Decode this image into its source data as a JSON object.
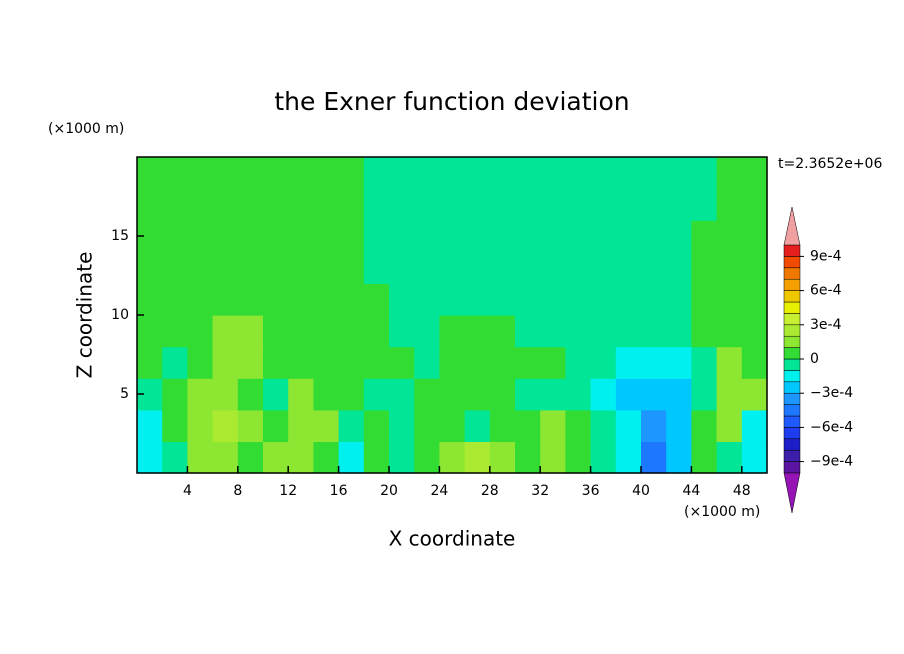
{
  "chart_data": {
    "type": "contour",
    "title": "the Exner function deviation",
    "xlabel": "X coordinate",
    "ylabel": "Z coordinate",
    "xunit": "(×1000 m)",
    "yunit": "(×1000 m)",
    "annotation": "t=2.3652e+06",
    "xlim": [
      0,
      50
    ],
    "ylim": [
      0,
      20
    ],
    "xticks": [
      4,
      8,
      12,
      16,
      20,
      24,
      28,
      32,
      36,
      40,
      44,
      48
    ],
    "yticks": [
      5,
      10,
      15
    ],
    "x": [
      1,
      3,
      5,
      7,
      9,
      11,
      13,
      15,
      17,
      19,
      21,
      23,
      25,
      27,
      29,
      31,
      33,
      35,
      37,
      39,
      41,
      43,
      45,
      47,
      49
    ],
    "y": [
      1,
      3,
      5,
      7,
      9,
      11,
      13,
      15,
      17,
      19
    ],
    "z": [
      [
        -0.00015,
        -5e-05,
        0.00015,
        0.00015,
        5e-05,
        0.00015,
        0.00015,
        5e-05,
        -0.00015,
        5e-05,
        -5e-05,
        5e-05,
        0.00015,
        0.00025,
        0.00015,
        5e-05,
        0.00015,
        5e-05,
        -5e-05,
        -0.00015,
        -0.00045,
        -0.00025,
        5e-05,
        -5e-05,
        -0.00015
      ],
      [
        -0.00015,
        5e-05,
        0.00015,
        0.00025,
        0.00015,
        5e-05,
        0.00015,
        0.00015,
        -5e-05,
        5e-05,
        -5e-05,
        5e-05,
        5e-05,
        -5e-05,
        5e-05,
        5e-05,
        0.00015,
        5e-05,
        -5e-05,
        -0.00015,
        -0.00035,
        -0.00025,
        5e-05,
        0.00015,
        -0.00015
      ],
      [
        -5e-05,
        5e-05,
        0.00015,
        0.00015,
        5e-05,
        -5e-05,
        0.00015,
        5e-05,
        5e-05,
        -5e-05,
        -5e-05,
        5e-05,
        5e-05,
        5e-05,
        5e-05,
        -5e-05,
        -5e-05,
        -5e-05,
        -0.00015,
        -0.00025,
        -0.00025,
        -0.00025,
        -5e-05,
        0.00015,
        0.00015
      ],
      [
        5e-05,
        -5e-05,
        5e-05,
        0.00015,
        0.00015,
        5e-05,
        5e-05,
        5e-05,
        5e-05,
        5e-05,
        5e-05,
        -5e-05,
        5e-05,
        5e-05,
        5e-05,
        5e-05,
        5e-05,
        -5e-05,
        -5e-05,
        -0.00015,
        -0.00015,
        -0.00015,
        -5e-05,
        0.00015,
        5e-05
      ],
      [
        5e-05,
        5e-05,
        5e-05,
        0.00015,
        0.00015,
        5e-05,
        5e-05,
        5e-05,
        5e-05,
        5e-05,
        -5e-05,
        -5e-05,
        5e-05,
        5e-05,
        5e-05,
        -5e-05,
        -5e-05,
        -5e-05,
        -5e-05,
        -5e-05,
        -5e-05,
        -5e-05,
        5e-05,
        5e-05,
        5e-05
      ],
      [
        5e-05,
        5e-05,
        5e-05,
        5e-05,
        5e-05,
        5e-05,
        5e-05,
        5e-05,
        5e-05,
        5e-05,
        -5e-05,
        -5e-05,
        -5e-05,
        -5e-05,
        -5e-05,
        -5e-05,
        -5e-05,
        -5e-05,
        -5e-05,
        -5e-05,
        -5e-05,
        -5e-05,
        5e-05,
        5e-05,
        5e-05
      ],
      [
        5e-05,
        5e-05,
        5e-05,
        5e-05,
        5e-05,
        5e-05,
        5e-05,
        5e-05,
        5e-05,
        -5e-05,
        -5e-05,
        -5e-05,
        -5e-05,
        -5e-05,
        -5e-05,
        -5e-05,
        -5e-05,
        -5e-05,
        -5e-05,
        -5e-05,
        -5e-05,
        -5e-05,
        5e-05,
        5e-05,
        5e-05
      ],
      [
        5e-05,
        5e-05,
        5e-05,
        5e-05,
        5e-05,
        5e-05,
        5e-05,
        5e-05,
        5e-05,
        -5e-05,
        -5e-05,
        -5e-05,
        -5e-05,
        -5e-05,
        -5e-05,
        -5e-05,
        -5e-05,
        -5e-05,
        -5e-05,
        -5e-05,
        -5e-05,
        -5e-05,
        5e-05,
        5e-05,
        5e-05
      ],
      [
        5e-05,
        5e-05,
        5e-05,
        5e-05,
        5e-05,
        5e-05,
        5e-05,
        5e-05,
        5e-05,
        -5e-05,
        -5e-05,
        -5e-05,
        -5e-05,
        -5e-05,
        -5e-05,
        -5e-05,
        -5e-05,
        -5e-05,
        -5e-05,
        -5e-05,
        -5e-05,
        -5e-05,
        -5e-05,
        5e-05,
        5e-05
      ],
      [
        5e-05,
        5e-05,
        5e-05,
        5e-05,
        5e-05,
        5e-05,
        5e-05,
        5e-05,
        5e-05,
        -5e-05,
        -5e-05,
        -5e-05,
        -5e-05,
        -5e-05,
        -5e-05,
        -5e-05,
        -5e-05,
        -5e-05,
        -5e-05,
        -5e-05,
        -5e-05,
        -5e-05,
        -5e-05,
        5e-05,
        5e-05
      ]
    ],
    "levels": [
      -0.001,
      -0.0009,
      -0.0008,
      -0.0007,
      -0.0006,
      -0.0005,
      -0.0004,
      -0.0003,
      -0.0002,
      -0.0001,
      0,
      0.0001,
      0.0002,
      0.0003,
      0.0004,
      0.0005,
      0.0006,
      0.0007,
      0.0008,
      0.0009,
      0.001
    ],
    "colors": [
      "#5a14a0",
      "#3c1eaa",
      "#1e1ec8",
      "#1e3cf0",
      "#1e5aff",
      "#1e78ff",
      "#1e96ff",
      "#00c8ff",
      "#00f0f0",
      "#00e696",
      "#32dc32",
      "#8ce632",
      "#aaeb32",
      "#c8f032",
      "#e6f000",
      "#f0c800",
      "#f5a000",
      "#f07800",
      "#f04b00",
      "#e61e1e"
    ],
    "over_color": "#f0a0a0",
    "under_color": "#9614b4",
    "cticks": [
      {
        "value": 0.0009,
        "label": "9e-4"
      },
      {
        "value": 0.0006,
        "label": "6e-4"
      },
      {
        "value": 0.0003,
        "label": "3e-4"
      },
      0,
      {
        "value": -0.0003,
        "label": "−3e-4"
      },
      {
        "value": -0.0006,
        "label": "−6e-4"
      },
      {
        "value": -0.0009,
        "label": "−9e-4"
      }
    ]
  }
}
